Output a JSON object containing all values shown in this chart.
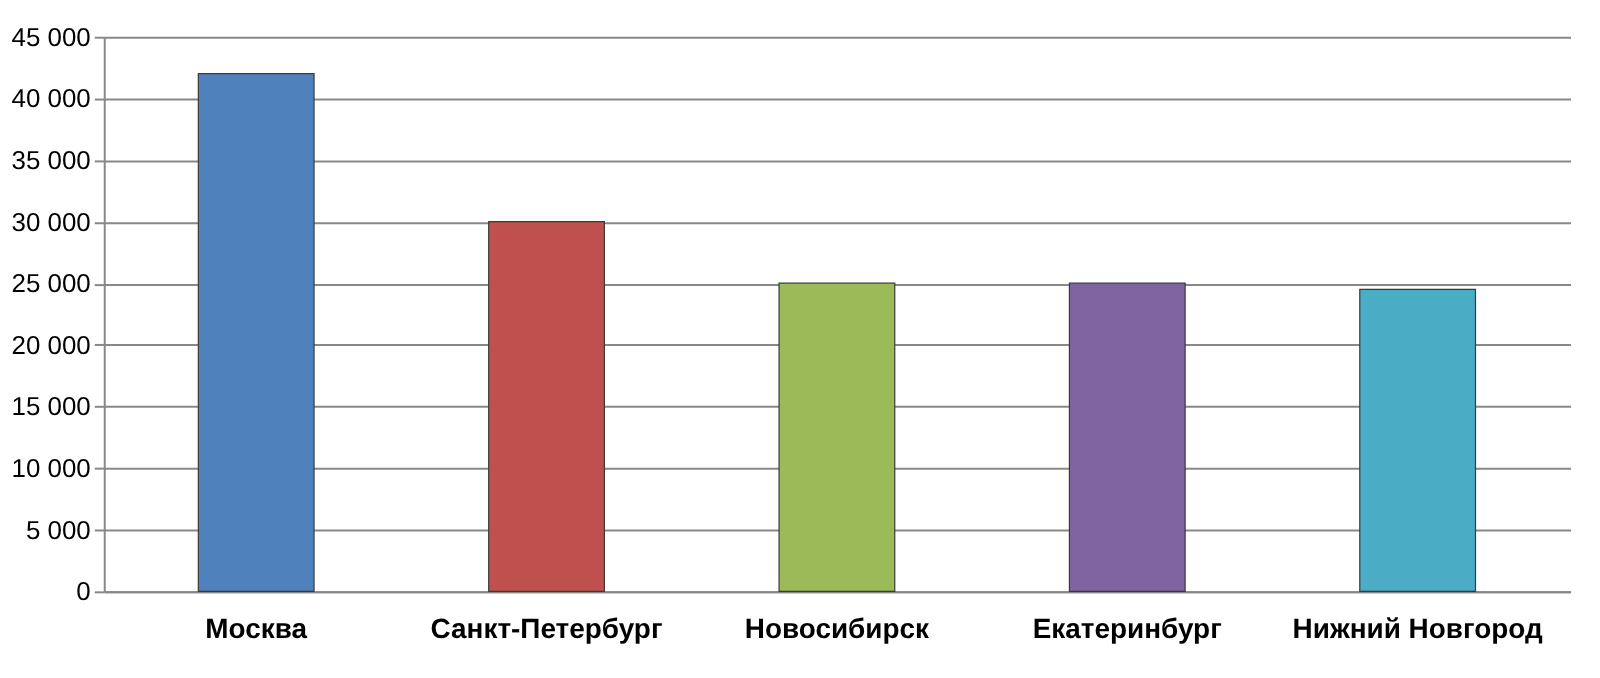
{
  "chart_data": {
    "type": "bar",
    "categories": [
      "Москва",
      "Санкт-Петербург",
      "Новосибирск",
      "Екатеринбург",
      "Нижний Новгород"
    ],
    "values": [
      42000,
      30000,
      25000,
      25000,
      24500
    ],
    "colors": [
      "#4f81bd",
      "#c0504d",
      "#9bbb59",
      "#8064a2",
      "#4bacc6"
    ],
    "ylim": [
      0,
      45000
    ],
    "yticks": [
      {
        "value": 0,
        "label": "0"
      },
      {
        "value": 5000,
        "label": "5 000"
      },
      {
        "value": 10000,
        "label": "10 000"
      },
      {
        "value": 15000,
        "label": "15 000"
      },
      {
        "value": 20000,
        "label": "20 000"
      },
      {
        "value": 25000,
        "label": "25 000"
      },
      {
        "value": 30000,
        "label": "30 000"
      },
      {
        "value": 35000,
        "label": "35 000"
      },
      {
        "value": 40000,
        "label": "40 000"
      },
      {
        "value": 45000,
        "label": "45 000"
      }
    ],
    "grid": "y",
    "legend": false
  }
}
